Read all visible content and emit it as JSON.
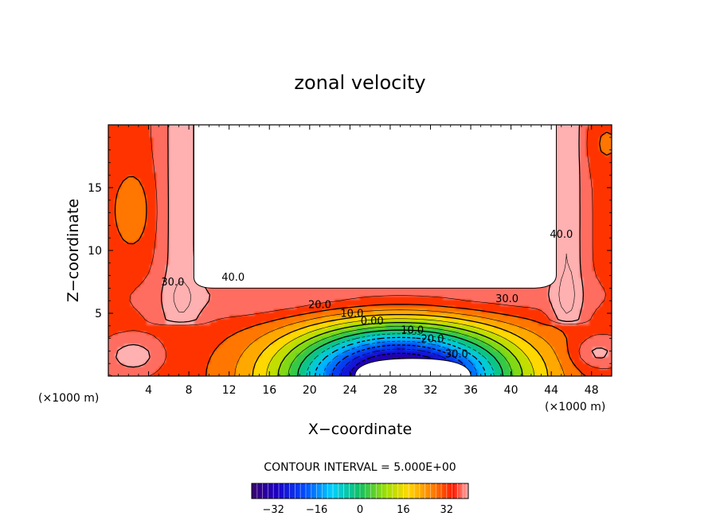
{
  "chart_data": {
    "type": "heatmap",
    "title": "zonal velocity",
    "xlabel": "X−coordinate",
    "ylabel": "Z−coordinate",
    "x_unit_left": "(×1000 m)",
    "x_unit_right": "(×1000 m)",
    "xlim": [
      0,
      50
    ],
    "ylim": [
      0,
      20
    ],
    "x_ticks": [
      4,
      8,
      12,
      16,
      20,
      24,
      28,
      32,
      36,
      40,
      44,
      48
    ],
    "x_tick_labels": [
      "4",
      "8",
      "12",
      "16",
      "20",
      "24",
      "28",
      "32",
      "36",
      "40",
      "44",
      "48"
    ],
    "y_ticks": [
      5,
      10,
      15
    ],
    "y_tick_labels": [
      "5",
      "10",
      "15"
    ],
    "contour_labels": [
      {
        "text": "40.0",
        "x": 12.4,
        "z": 7.6
      },
      {
        "text": "30.0",
        "x": 6.4,
        "z": 7.2
      },
      {
        "text": "20.0",
        "x": 21.0,
        "z": 5.4
      },
      {
        "text": "10.0",
        "x": 24.2,
        "z": 4.7
      },
      {
        "text": "0.00",
        "x": 26.2,
        "z": 4.1
      },
      {
        "text": "10.0",
        "x": 30.2,
        "z": 3.4
      },
      {
        "text": "20.0",
        "x": 32.2,
        "z": 2.7
      },
      {
        "text": "30.0",
        "x": 34.6,
        "z": 1.5
      },
      {
        "text": "30.0",
        "x": 39.6,
        "z": 5.9
      },
      {
        "text": "40.0",
        "x": 45.0,
        "z": 11.0
      }
    ],
    "obstacles": [
      {
        "x": [
          8.5,
          44.5
        ],
        "z": [
          7.0,
          20.0
        ]
      },
      {
        "x": [
          24.5,
          36.0
        ],
        "z": [
          0.0,
          1.4
        ]
      }
    ],
    "colorbar": {
      "min": -40,
      "max": 40,
      "ticks": [
        -32,
        -16,
        0,
        16,
        32
      ],
      "tick_labels": [
        "−32",
        "−16",
        "0",
        "16",
        "32"
      ]
    },
    "contour_interval_text": "CONTOUR INTERVAL = 5.000E+00"
  }
}
